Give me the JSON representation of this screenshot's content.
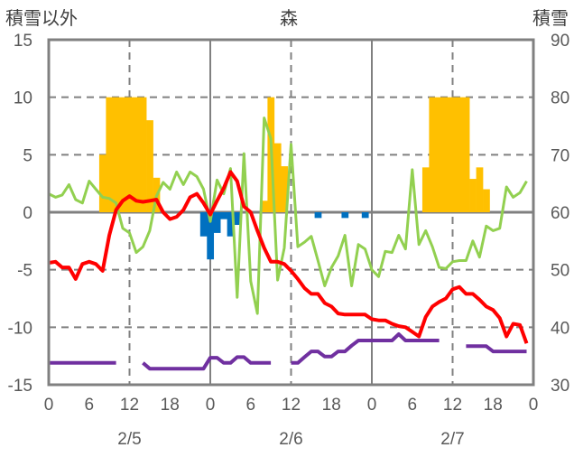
{
  "chart_data": {
    "type": "bar+line",
    "title": "森",
    "ylabel_left": "積雪以外",
    "ylabel_right": "積雪",
    "ylim_left": [
      -15,
      15
    ],
    "ylim_right": [
      30,
      90
    ],
    "yticks_left": [
      "15",
      "10",
      "5",
      "0",
      "-5",
      "-10",
      "-15"
    ],
    "yticks_right": [
      "90",
      "80",
      "70",
      "60",
      "50",
      "40",
      "30"
    ],
    "xlim_hours": [
      0,
      72
    ],
    "xtick_labels": [
      "0",
      "6",
      "12",
      "18",
      "0",
      "6",
      "12",
      "18",
      "0",
      "6",
      "12",
      "18",
      "0"
    ],
    "date_labels": [
      {
        "hour": 12,
        "label": "2/5"
      },
      {
        "hour": 36,
        "label": "2/6"
      },
      {
        "hour": 60,
        "label": "2/7"
      }
    ],
    "grid": "horizontal dashed at ±5,±10; vertical solid at day boundaries, dashed at noon",
    "colors": {
      "bar_pos": "#FFC000",
      "bar_neg": "#0070C0",
      "red": "#FF0000",
      "green": "#92D050",
      "purple": "#7030A0",
      "axis": "#808080"
    },
    "bars_positive": [
      [
        8,
        5
      ],
      [
        9,
        10
      ],
      [
        10,
        10
      ],
      [
        11,
        10
      ],
      [
        12,
        10
      ],
      [
        13,
        10
      ],
      [
        14,
        10
      ],
      [
        15,
        8
      ],
      [
        16,
        3
      ],
      [
        32,
        1
      ],
      [
        33,
        10
      ],
      [
        34,
        6
      ],
      [
        35,
        4
      ],
      [
        56,
        3.9
      ],
      [
        57,
        10
      ],
      [
        58,
        10
      ],
      [
        59,
        10
      ],
      [
        60,
        10
      ],
      [
        61,
        10
      ],
      [
        62,
        10
      ],
      [
        63,
        2.9
      ],
      [
        64,
        3.9
      ],
      [
        65,
        2
      ]
    ],
    "bars_negative": [
      [
        23,
        -2.1
      ],
      [
        24,
        -4.1
      ],
      [
        25,
        -1.8
      ],
      [
        26,
        -0.6
      ],
      [
        27,
        -2.1
      ],
      [
        28,
        -1.1
      ],
      [
        40,
        -0.5
      ],
      [
        44,
        -0.5
      ],
      [
        47,
        -0.5
      ]
    ],
    "series": [
      {
        "name": "red",
        "axis": "left",
        "values": [
          -4.4,
          -4.3,
          -4.8,
          -4.8,
          -5.8,
          -4.5,
          -4.3,
          -4.5,
          -5.1,
          -2.0,
          0.2,
          1.0,
          1.4,
          1.0,
          0.9,
          1.0,
          1.1,
          0,
          -0.6,
          -0.4,
          0.2,
          1.3,
          1.6,
          0.8,
          -0.2,
          1.0,
          2.1,
          3.5,
          2.7,
          0.5,
          0,
          -1.6,
          -3.1,
          -4.3,
          -4.3,
          -4.5,
          -5.1,
          -5.8,
          -6.6,
          -7.1,
          -7.1,
          -7.9,
          -8.2,
          -8.8,
          -8.9,
          -8.9,
          -8.9,
          -8.9,
          -9.3,
          -9.4,
          -9.4,
          -9.7,
          -9.9,
          -10.0,
          -10.4,
          -10.8,
          -9.1,
          -8.2,
          -7.8,
          -7.5,
          -6.7,
          -6.5,
          -7.1,
          -7.1,
          -7.6,
          -8.2,
          -8.5,
          -9.2,
          -10.8,
          -9.7,
          -9.8,
          -11.4
        ]
      },
      {
        "name": "green",
        "axis": "left",
        "values": [
          1.6,
          1.3,
          1.5,
          2.4,
          1.1,
          0.8,
          2.7,
          2.0,
          1.3,
          1.2,
          0.8,
          -1.4,
          -1.8,
          -3.5,
          -3.0,
          -1.6,
          1.4,
          2.6,
          2.0,
          3.5,
          2.4,
          3.5,
          3.1,
          2.0,
          -0.8,
          2.8,
          1.6,
          3.8,
          -7.4,
          5.1,
          -6.0,
          -8.8,
          8.2,
          6.4,
          -5.9,
          -3.1,
          5.9,
          -3.0,
          -2.6,
          -2.1,
          -4.2,
          -6.4,
          -4.8,
          -3.8,
          -2.0,
          -6.4,
          -2.8,
          -3.2,
          -5.0,
          -5.6,
          -3.4,
          -3.5,
          -2.0,
          -3.2,
          3.7,
          -2.8,
          -1.6,
          -3.0,
          -4.8,
          -4.9,
          -4.3,
          -4.2,
          -4.2,
          -2.5,
          -3.9,
          -1.2,
          -1.6,
          -1.4,
          2.2,
          1.3,
          1.7,
          2.7
        ]
      },
      {
        "name": "purple",
        "axis": "right",
        "values": [
          33.8,
          33.8,
          33.8,
          33.8,
          33.8,
          33.8,
          33.8,
          33.8,
          33.8,
          33.8,
          33.8,
          null,
          null,
          null,
          33.8,
          32.8,
          32.8,
          32.8,
          32.8,
          32.8,
          32.8,
          32.8,
          32.8,
          32.8,
          34.7,
          34.7,
          33.8,
          33.8,
          34.8,
          34.8,
          33.8,
          33.8,
          33.8,
          33.8,
          null,
          null,
          33.8,
          33.8,
          34.8,
          35.8,
          35.8,
          34.9,
          34.9,
          35.8,
          35.8,
          36.8,
          37.7,
          37.7,
          37.7,
          37.7,
          37.7,
          37.7,
          38.8,
          37.7,
          37.7,
          37.7,
          37.7,
          37.7,
          37.7,
          null,
          null,
          null,
          36.7,
          36.7,
          36.7,
          36.7,
          35.8,
          35.8,
          35.8,
          35.8,
          35.8,
          35.8
        ]
      }
    ]
  }
}
